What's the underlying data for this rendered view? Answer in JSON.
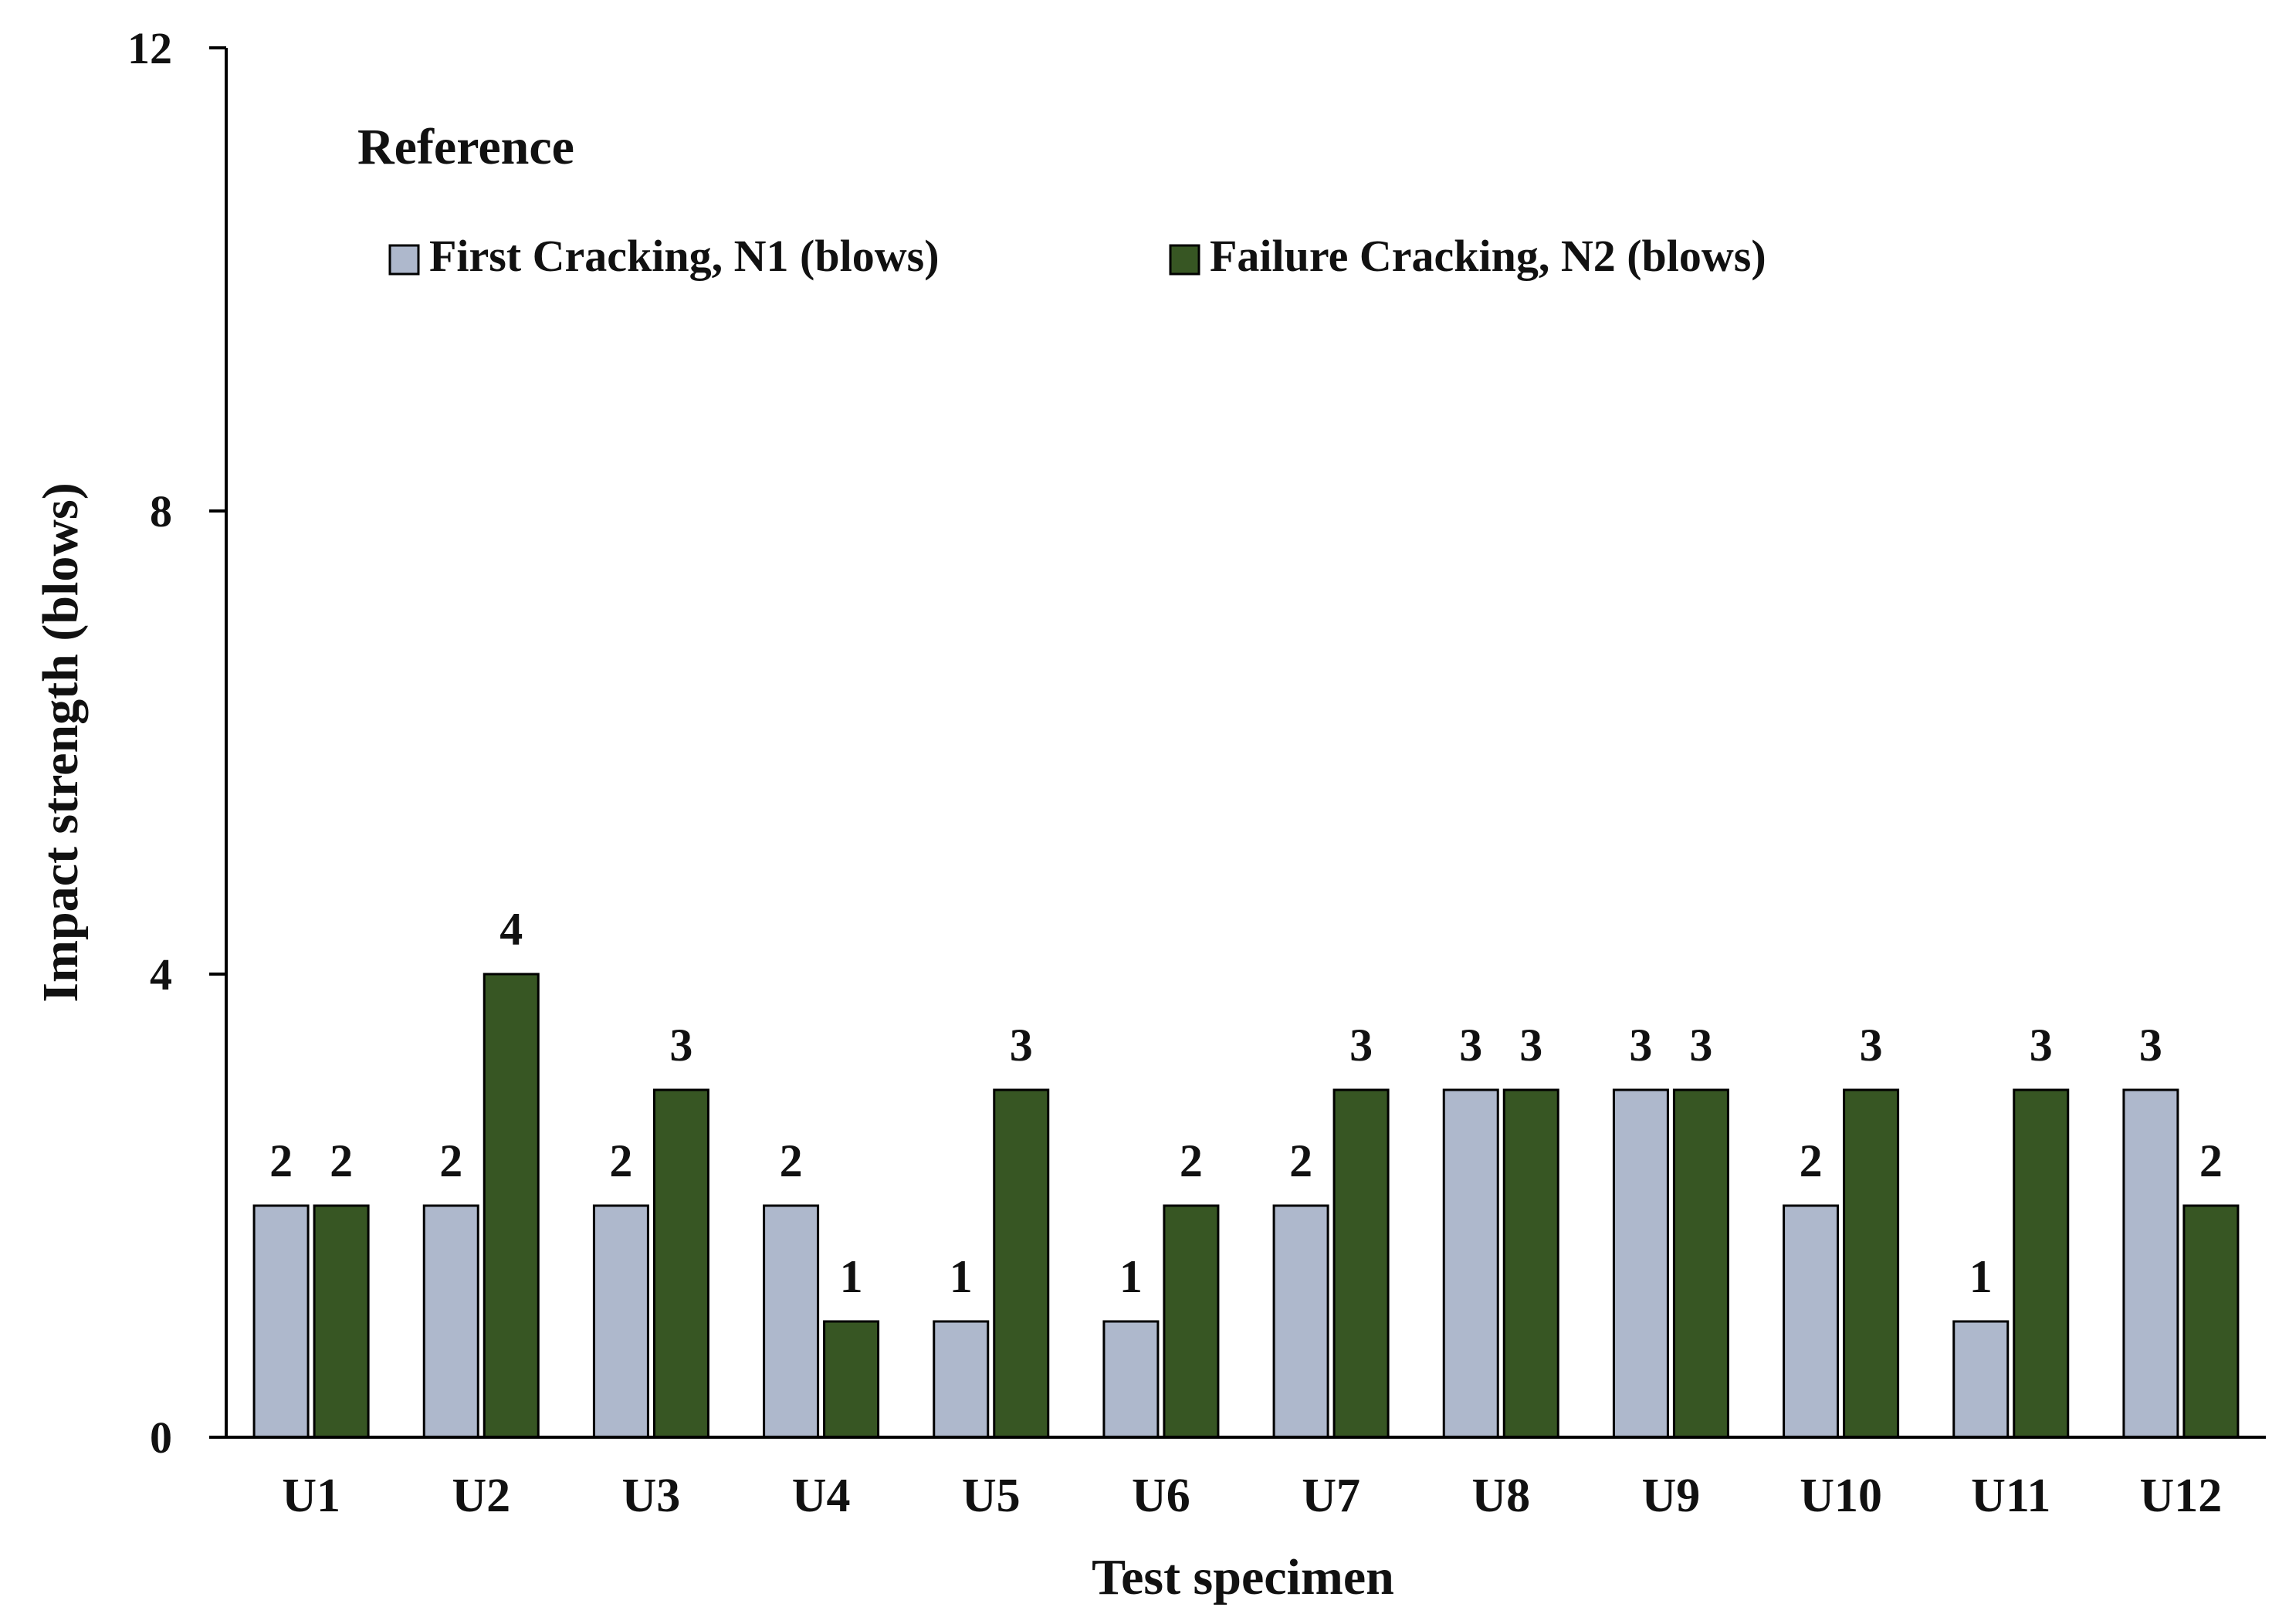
{
  "chart_data": {
    "type": "bar",
    "title": "Reference",
    "xlabel": "Test specimen",
    "ylabel": "Impact strength (blows)",
    "categories": [
      "U1",
      "U2",
      "U3",
      "U4",
      "U5",
      "U6",
      "U7",
      "U8",
      "U9",
      "U10",
      "U11",
      "U12"
    ],
    "ylim": [
      0,
      12
    ],
    "yticks": [
      0,
      4,
      8,
      12
    ],
    "grid": false,
    "legend_position": "top-left",
    "series": [
      {
        "name": "First Cracking, N1 (blows)",
        "color": "#aeb8cc",
        "values": [
          2,
          2,
          2,
          2,
          1,
          1,
          2,
          3,
          3,
          2,
          1,
          3
        ]
      },
      {
        "name": "Failure Cracking, N2 (blows)",
        "color": "#375623",
        "values": [
          2,
          4,
          3,
          1,
          3,
          2,
          3,
          3,
          3,
          3,
          3,
          2
        ]
      }
    ]
  }
}
